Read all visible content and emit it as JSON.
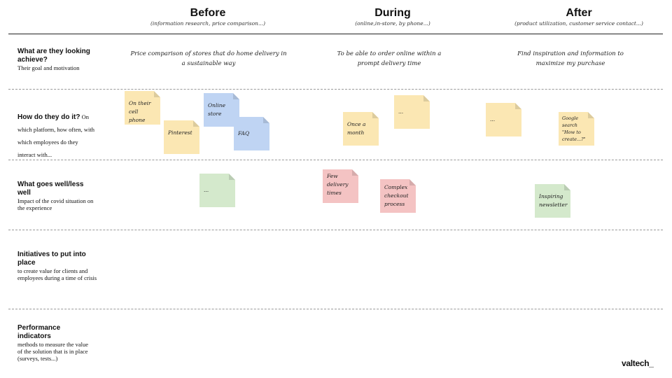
{
  "columns": [
    {
      "title": "Before",
      "subtitle": "(information research, price comparison...)"
    },
    {
      "title": "During",
      "subtitle": "(online,in-store, by phone...)"
    },
    {
      "title": "After",
      "subtitle": "(product utilization, customer service contact...)"
    }
  ],
  "rows": [
    {
      "title": "What are they looking achieve?",
      "desc": "Their goal and motivation"
    },
    {
      "title": "How do they do it?",
      "desc": " On which platform, how often, with which employees do they interact with..."
    },
    {
      "title": "What goes well/less well",
      "desc": "Impact of the covid situation on the experience"
    },
    {
      "title": "Initiatives to put into place",
      "desc": "to create value for clients and employees during a time of crisis"
    },
    {
      "title": "Performance indicators",
      "desc": "methods to measure the value of the solution that is in place (surveys, tests...)"
    }
  ],
  "goals": [
    "Price comparison of stores that do home delivery in a sustainable way",
    "To be able to order online within a prompt delivery time",
    "Find inspiration and information to maximize my purchase"
  ],
  "notes": [
    {
      "text": "On their cell phone",
      "color": "#fbe7b3"
    },
    {
      "text": "Pinterest",
      "color": "#fbe7b3"
    },
    {
      "text": "Online store",
      "color": "#bfd4f3"
    },
    {
      "text": "FAQ",
      "color": "#bfd4f3"
    },
    {
      "text": "Once a month",
      "color": "#fbe7b3"
    },
    {
      "text": "...",
      "color": "#fbe7b3"
    },
    {
      "text": "...",
      "color": "#fbe7b3"
    },
    {
      "text": "Google search \"How to create...?\"",
      "color": "#fbe7b3"
    },
    {
      "text": "...",
      "color": "#d4e9cc"
    },
    {
      "text": "Few delivery times",
      "color": "#f4c3c3"
    },
    {
      "text": "Complex checkout process",
      "color": "#f4c3c3"
    },
    {
      "text": "Inspiring newsletter",
      "color": "#d4e9cc"
    }
  ],
  "logo": "valtech_"
}
